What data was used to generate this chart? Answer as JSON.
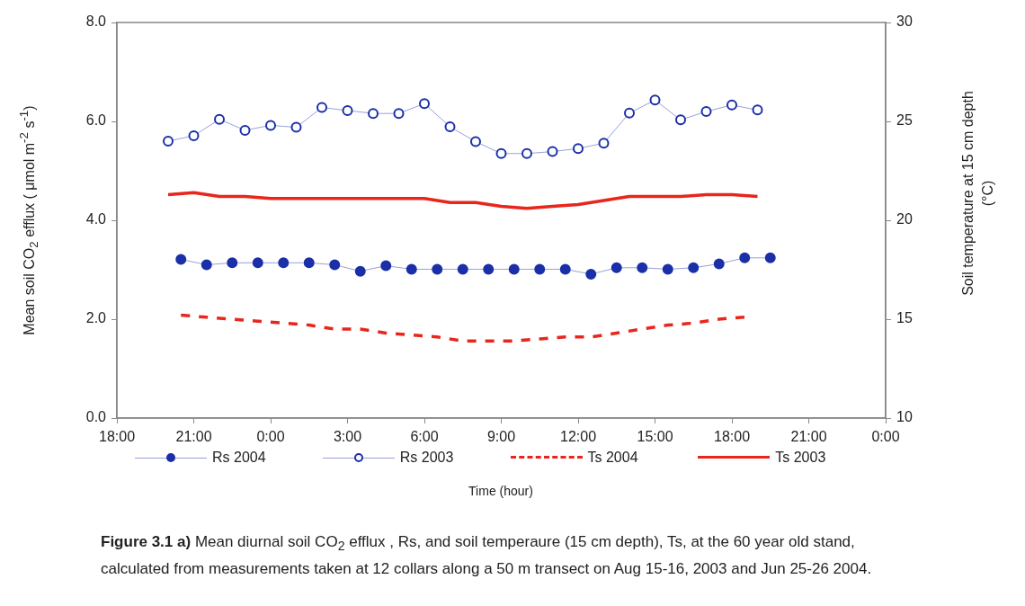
{
  "chart_data": {
    "type": "line",
    "xlabel": "Time (hour)",
    "ylabel": "Mean soil CO$_{2}$ efflux ( μmol m$^{-2}$ s$^{-1}$)",
    "y2label": "Soil temperature at 15 cm depth (°C)",
    "annotations": [
      "Figure 3.1 a)",
      "Mean diurnal soil CO$_{2}$ efflux , Rs, and soil temperaure (15 cm depth), Ts, at the 60 year old stand, calculated from measurements taken at 12 collars along a 50 m transect on Aug 15-16, 2003 and Jun 25-26 2004."
    ],
    "categories": [
      "18:00",
      null,
      null,
      null,
      null,
      null,
      "21:00",
      null,
      null,
      null,
      null,
      null,
      "0:00",
      null,
      null,
      null,
      null,
      null,
      "3:00",
      null,
      null,
      null,
      null,
      null,
      "6:00",
      null,
      null,
      null,
      null,
      null,
      "9:00",
      null,
      null,
      null,
      null,
      null,
      "12:00",
      null,
      null,
      null,
      null,
      null,
      "15:00",
      null,
      null,
      null,
      null,
      null,
      "18:00",
      null,
      null,
      null,
      null,
      null,
      "21:00",
      null,
      null,
      null,
      null,
      null,
      "0:00"
    ],
    "ylim": [
      0,
      8
    ],
    "yticks": [
      {
        "value": 0,
        "label": "0.0"
      },
      {
        "value": 2,
        "label": "2.0"
      },
      {
        "value": 4,
        "label": "4.0"
      },
      {
        "value": 6,
        "label": "6.0"
      },
      {
        "value": 8,
        "label": "8.0"
      }
    ],
    "y2lim": [
      10,
      30
    ],
    "y2ticks": [
      10,
      15,
      20,
      25,
      30
    ],
    "grid": false,
    "legend": "bottom",
    "series": [
      {
        "name": "Rs 2004",
        "color": "#1a2fa8",
        "marker": "circle",
        "line_style": "solid",
        "values": [
          null,
          null,
          null,
          null,
          null,
          3.21,
          null,
          3.1,
          null,
          3.14,
          null,
          3.14,
          null,
          3.14,
          null,
          3.14,
          null,
          3.1,
          null,
          2.97,
          null,
          3.08,
          null,
          3.01,
          null,
          3.01,
          null,
          3.01,
          null,
          3.01,
          null,
          3.01,
          null,
          3.01,
          null,
          3.01,
          null,
          2.91,
          null,
          3.04,
          null,
          3.04,
          null,
          3.01,
          null,
          3.04,
          null,
          3.12,
          null,
          3.24,
          null,
          3.24,
          null,
          null,
          null,
          null,
          null,
          null,
          null,
          null,
          null
        ]
      },
      {
        "name": "Rs 2003",
        "color": "#1a2fa8",
        "marker": "circle",
        "line_style": "solid",
        "values": [
          null,
          null,
          null,
          null,
          5.6,
          null,
          5.71,
          null,
          6.04,
          null,
          5.82,
          null,
          5.92,
          null,
          5.88,
          null,
          6.28,
          null,
          6.22,
          null,
          6.16,
          null,
          6.16,
          null,
          6.36,
          null,
          5.89,
          null,
          5.59,
          null,
          5.35,
          null,
          5.35,
          null,
          5.39,
          null,
          5.45,
          null,
          5.56,
          null,
          6.17,
          null,
          6.43,
          null,
          6.03,
          null,
          6.2,
          null,
          6.33,
          null,
          6.23,
          null,
          null,
          null,
          null,
          null,
          null,
          null,
          null,
          null,
          null
        ]
      },
      {
        "name": "Ts 2004",
        "color": "#e8261c",
        "axis": "y2",
        "marker": "none",
        "line_style": "dashed",
        "values": [
          null,
          null,
          null,
          null,
          null,
          15.2,
          null,
          15.1,
          null,
          15.0,
          null,
          14.9,
          null,
          14.8,
          null,
          14.7,
          null,
          14.5,
          null,
          14.5,
          null,
          14.3,
          null,
          14.2,
          null,
          14.1,
          null,
          13.9,
          null,
          13.9,
          null,
          13.9,
          null,
          14.0,
          null,
          14.1,
          null,
          14.1,
          null,
          14.3,
          null,
          14.5,
          null,
          14.7,
          null,
          14.8,
          null,
          15.0,
          null,
          15.1,
          null,
          null,
          null,
          null,
          null,
          null,
          null,
          null,
          null,
          null,
          null
        ]
      },
      {
        "name": "Ts 2003",
        "color": "#e8261c",
        "axis": "y2",
        "marker": "none",
        "line_style": "solid",
        "values": [
          null,
          null,
          null,
          null,
          21.3,
          null,
          21.4,
          null,
          21.2,
          null,
          21.2,
          null,
          21.1,
          null,
          21.1,
          null,
          21.1,
          null,
          21.1,
          null,
          21.1,
          null,
          21.1,
          null,
          21.1,
          null,
          20.9,
          null,
          20.9,
          null,
          20.7,
          null,
          20.6,
          null,
          20.7,
          null,
          20.8,
          null,
          21.0,
          null,
          21.2,
          null,
          21.2,
          null,
          21.2,
          null,
          21.3,
          null,
          21.3,
          null,
          21.2,
          null,
          null,
          null,
          null,
          null,
          null,
          null,
          null,
          null,
          null
        ]
      }
    ]
  }
}
